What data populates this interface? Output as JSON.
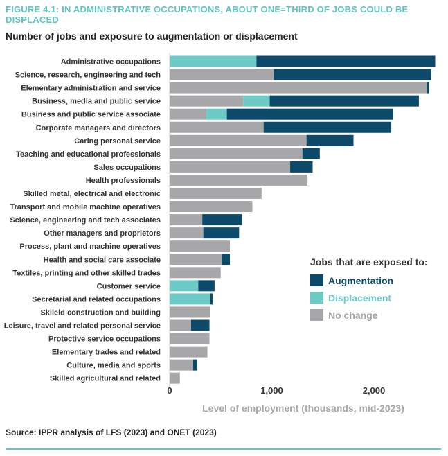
{
  "header": {
    "figure_label": "FIGURE 4.1: IN ADMINISTRATIVE OCCUPATIONS, ABOUT ONE=THIRD OF JOBS COULD BE DISPLACED",
    "subtitle": "Number of jobs and exposure to augmentation or displacement"
  },
  "footer": {
    "source": "Source: IPPR analysis of LFS (2023) and ONET (2023)"
  },
  "colors": {
    "no_change": "#a7a7a9",
    "displacement": "#6ccbc6",
    "augmentation": "#0d4a6a"
  },
  "chart_data": {
    "type": "bar",
    "orientation": "horizontal",
    "stacked": true,
    "xlabel": "Level of employment (thousands, mid-2023)",
    "xlim": [
      0,
      2650
    ],
    "xticks": [
      0,
      1000,
      2000
    ],
    "xtick_labels": [
      "0",
      "1,000",
      "2,000"
    ],
    "legend": {
      "title": "Jobs that are exposed to:",
      "position": "right",
      "items": [
        {
          "key": "augmentation",
          "label": "Augmentation"
        },
        {
          "key": "displacement",
          "label": "Displacement"
        },
        {
          "key": "no_change",
          "label": "No change"
        }
      ]
    },
    "categories": [
      "Administrative occupations",
      "Science, research, engineering and tech",
      "Elementary administration and service",
      "Business, media and public service",
      "Business and public service associate",
      "Corporate managers and directors",
      "Caring personal service",
      "Teaching and educational professionals",
      "Sales occupations",
      "Health professionals",
      "Skilled metal, electrical and electronic",
      "Transport and mobile machine operatives",
      "Science, engineering and tech associates",
      "Other managers and proprietors",
      "Process, plant and machine operatives",
      "Health and social care associate",
      "Textiles, printing and other skilled trades",
      "Customer service",
      "Secretarial and related occupations",
      "Skileld construction and building",
      "Leisure, travel and related personal service",
      "Protective service occupations",
      "Elementary trades and related",
      "Culture, media and sports",
      "Skilled agricultural and related"
    ],
    "series": [
      {
        "name": "No change",
        "key": "no_change",
        "values": [
          0,
          1020,
          2520,
          720,
          360,
          920,
          1340,
          1300,
          1180,
          1350,
          900,
          810,
          320,
          330,
          590,
          510,
          500,
          0,
          0,
          400,
          210,
          390,
          370,
          230,
          100
        ]
      },
      {
        "name": "Displacement",
        "key": "displacement",
        "values": [
          850,
          0,
          0,
          260,
          200,
          0,
          0,
          0,
          0,
          0,
          0,
          0,
          0,
          0,
          0,
          0,
          0,
          280,
          400,
          0,
          0,
          0,
          0,
          0,
          0
        ]
      },
      {
        "name": "Augmentation",
        "key": "augmentation",
        "values": [
          1750,
          1540,
          20,
          1460,
          1630,
          1250,
          460,
          170,
          220,
          0,
          0,
          0,
          390,
          350,
          0,
          80,
          0,
          160,
          20,
          0,
          180,
          0,
          0,
          40,
          0
        ]
      }
    ]
  }
}
